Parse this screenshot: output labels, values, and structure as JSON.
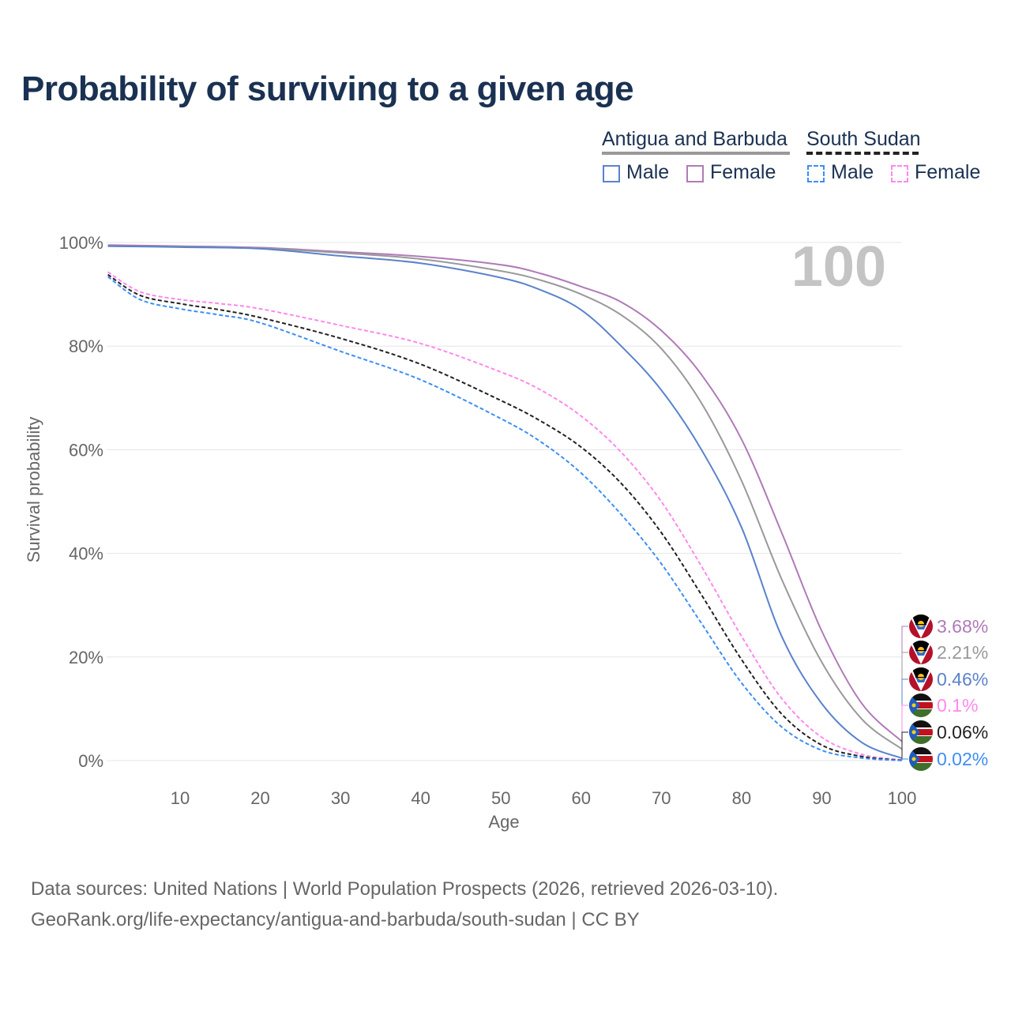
{
  "title": "Probability of surviving to a given age",
  "legend": {
    "country1": "Antigua and Barbuda",
    "country2": "South Sudan",
    "male": "Male",
    "female": "Female"
  },
  "source_line1": "Data sources: United Nations | World Population Prospects (2026, retrieved 2026-03-10).",
  "source_line2": "GeoRank.org/life-expectancy/antigua-and-barbuda/south-sudan | CC BY",
  "chart_data": {
    "type": "line",
    "title": "Probability of surviving to a given age",
    "xlabel": "Age",
    "ylabel": "Survival probability",
    "xlim": [
      1,
      100
    ],
    "ylim": [
      0,
      100
    ],
    "x_ticks": [
      10,
      20,
      30,
      40,
      50,
      60,
      70,
      80,
      90,
      100
    ],
    "y_ticks": [
      "0%",
      "20%",
      "40%",
      "60%",
      "80%",
      "100%"
    ],
    "y_tick_values": [
      0,
      20,
      40,
      60,
      80,
      100
    ],
    "grid": true,
    "current_age_label": "100",
    "series": [
      {
        "name": "Antigua and Barbuda Female",
        "color": "#b07ab8",
        "dashed": false,
        "end_label": "3.68%",
        "flag": "antigua",
        "x": [
          1,
          10,
          20,
          30,
          40,
          50,
          55,
          60,
          65,
          70,
          75,
          80,
          85,
          90,
          95,
          100
        ],
        "values": [
          99.5,
          99.3,
          99.0,
          98.2,
          97.3,
          95.7,
          94.0,
          91.5,
          88.5,
          83,
          74.5,
          62,
          44,
          25,
          11,
          3.68
        ]
      },
      {
        "name": "Antigua and Barbuda Total",
        "color": "#999999",
        "dashed": false,
        "end_label": "2.21%",
        "flag": "antigua",
        "x": [
          1,
          10,
          20,
          30,
          40,
          50,
          55,
          60,
          65,
          70,
          75,
          80,
          85,
          90,
          95,
          100
        ],
        "values": [
          99.3,
          99.2,
          98.9,
          98.0,
          96.8,
          94.5,
          92.7,
          90,
          86,
          79.5,
          69,
          54,
          35,
          19,
          8,
          2.21
        ]
      },
      {
        "name": "Antigua and Barbuda Male",
        "color": "#5b82cc",
        "dashed": false,
        "end_label": "0.46%",
        "flag": "antigua",
        "x": [
          1,
          10,
          20,
          30,
          40,
          50,
          55,
          60,
          65,
          70,
          75,
          80,
          85,
          90,
          95,
          100
        ],
        "values": [
          99.3,
          99.1,
          98.8,
          97.4,
          96,
          93.2,
          90.8,
          87,
          80,
          71.5,
          60,
          45,
          24,
          11,
          3.5,
          0.46
        ]
      },
      {
        "name": "South Sudan Female",
        "color": "#ff88ee",
        "dashed": true,
        "end_label": "0.1%",
        "flag": "southsudan",
        "x": [
          1,
          5,
          10,
          15,
          20,
          30,
          40,
          50,
          55,
          60,
          65,
          70,
          75,
          80,
          85,
          90,
          95,
          100
        ],
        "values": [
          94.3,
          90.5,
          89,
          88.2,
          87.2,
          84,
          80.5,
          75,
          71.5,
          66.5,
          59.5,
          50,
          37.5,
          24,
          12,
          4.5,
          1.2,
          0.1
        ]
      },
      {
        "name": "South Sudan Total",
        "color": "#222222",
        "dashed": true,
        "end_label": "0.06%",
        "flag": "southsudan",
        "x": [
          1,
          5,
          10,
          15,
          20,
          30,
          40,
          50,
          55,
          60,
          65,
          70,
          75,
          80,
          85,
          90,
          95,
          100
        ],
        "values": [
          93.8,
          89.8,
          88.2,
          87,
          85.5,
          81.5,
          76.5,
          69.5,
          65.5,
          60.5,
          53.5,
          44,
          32,
          19.5,
          9,
          3,
          0.8,
          0.06
        ]
      },
      {
        "name": "South Sudan Male",
        "color": "#3d8ef5",
        "dashed": true,
        "end_label": "0.02%",
        "flag": "southsudan",
        "x": [
          1,
          5,
          10,
          15,
          20,
          30,
          40,
          50,
          55,
          60,
          65,
          70,
          75,
          80,
          85,
          90,
          95,
          100
        ],
        "values": [
          93.4,
          89,
          87.2,
          86,
          84.5,
          79,
          73.5,
          66,
          61.5,
          55.5,
          47.5,
          38,
          26.5,
          15,
          6.5,
          2,
          0.5,
          0.02
        ]
      }
    ]
  }
}
